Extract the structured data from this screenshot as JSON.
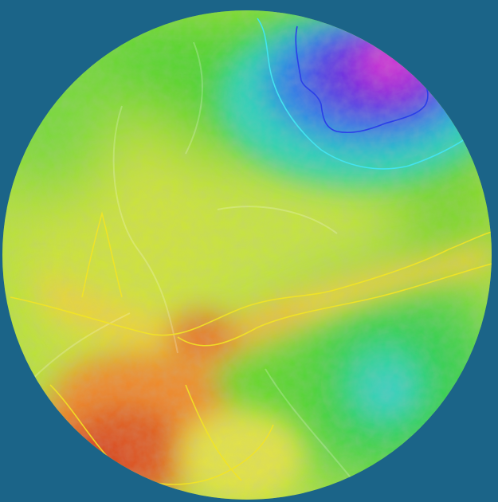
{
  "view": {
    "background_color": "#1b6488",
    "shape": "circle"
  },
  "heatmap": {
    "palette": [
      "#d9331c",
      "#ef7b1d",
      "#f0e73a",
      "#d7ee48",
      "#56d92f",
      "#1fcf53",
      "#27d6c9",
      "#2247e4",
      "#8a24da",
      "#e020cf"
    ],
    "palette_order": "low-to-high",
    "contour_colors": [
      "#f1e31f",
      "#2a3fe8",
      "#43e3ef"
    ]
  },
  "basemap": {
    "type": "satellite"
  }
}
